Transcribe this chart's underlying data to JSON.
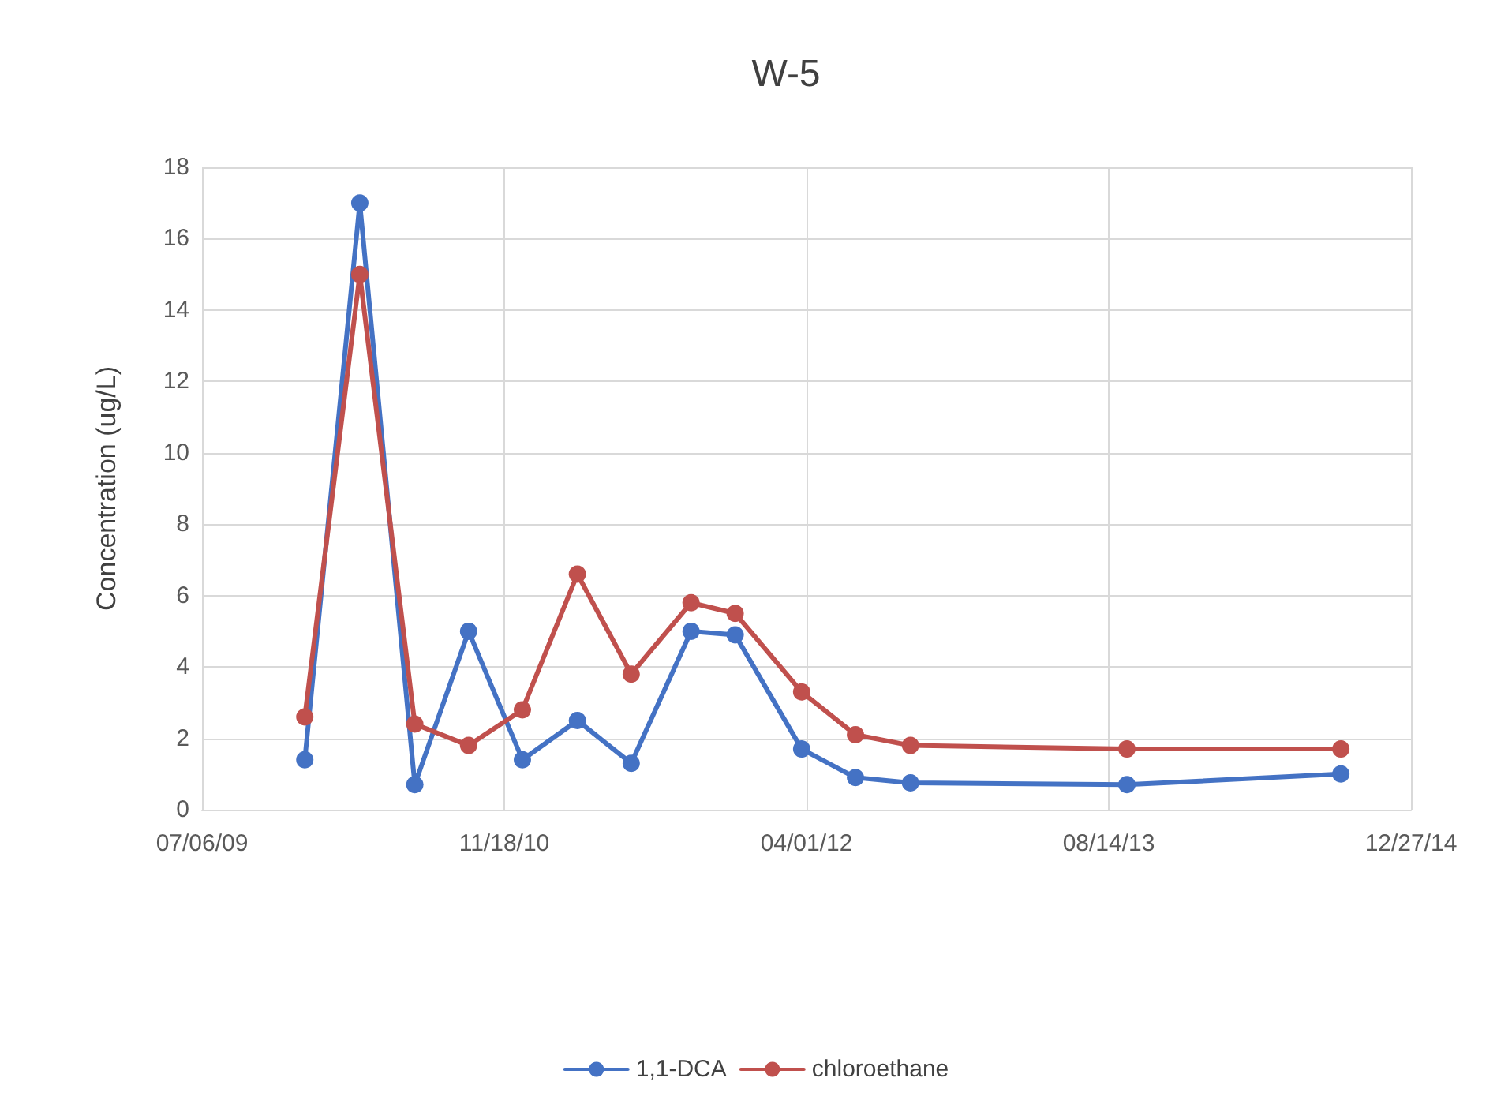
{
  "chart_data": {
    "type": "line",
    "title": "W-5",
    "ylabel": "Concentration (ug/L)",
    "x": [
      "2009-12-23",
      "2010-03-24",
      "2010-06-23",
      "2010-09-20",
      "2010-12-18",
      "2011-03-19",
      "2011-06-16",
      "2011-09-23",
      "2011-12-05",
      "2012-03-24",
      "2012-06-21",
      "2012-09-20",
      "2013-09-13",
      "2014-09-02"
    ],
    "series": [
      {
        "name": "1,1-DCA",
        "color": "#4472c4",
        "values": [
          1.4,
          17,
          0.7,
          5,
          1.4,
          2.5,
          1.3,
          5,
          4.9,
          1.7,
          0.9,
          0.75,
          0.7,
          1.0
        ]
      },
      {
        "name": "chloroethane",
        "color": "#c0504d",
        "values": [
          2.6,
          15,
          2.4,
          1.8,
          2.8,
          6.6,
          3.8,
          5.8,
          5.5,
          3.3,
          2.1,
          1.8,
          1.7,
          1.7
        ]
      }
    ],
    "xlim": [
      "2009-07-06",
      "2014-12-27"
    ],
    "xticks": [
      {
        "value": "2009-07-06",
        "label": "07/06/09"
      },
      {
        "value": "2010-11-18",
        "label": "11/18/10"
      },
      {
        "value": "2012-04-01",
        "label": "04/01/12"
      },
      {
        "value": "2013-08-14",
        "label": "08/14/13"
      },
      {
        "value": "2014-12-27",
        "label": "12/27/14"
      }
    ],
    "ylim": [
      0,
      18
    ],
    "yticks": [
      0,
      2,
      4,
      6,
      8,
      10,
      12,
      14,
      16,
      18
    ],
    "grid": true,
    "legend": "bottom",
    "marker": "circle",
    "line_style": "solid"
  }
}
